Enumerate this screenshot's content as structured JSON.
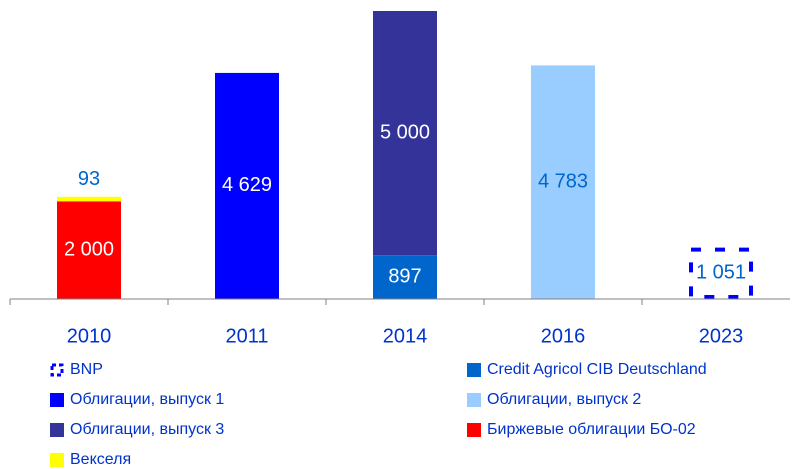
{
  "chart_data": {
    "type": "stacked_bar",
    "categories": [
      "2010",
      "2011",
      "2014",
      "2016",
      "2023"
    ],
    "series": [
      {
        "name": "BNP",
        "color": "#0000ff",
        "style": "dashed",
        "values": [
          null,
          null,
          null,
          null,
          1051
        ],
        "value_labels": [
          null,
          null,
          null,
          null,
          "1 051"
        ]
      },
      {
        "name": "Credit Agricol CIB Deutschland",
        "color": "#0066cc",
        "values": [
          null,
          null,
          897,
          null,
          null
        ],
        "value_labels": [
          null,
          null,
          "897",
          null,
          null
        ]
      },
      {
        "name": "Облигации, выпуск 1",
        "color": "#0000ff",
        "values": [
          null,
          4629,
          null,
          null,
          null
        ],
        "value_labels": [
          null,
          "4 629",
          null,
          null,
          null
        ]
      },
      {
        "name": "Облигации, выпуск 2",
        "color": "#99ccff",
        "values": [
          null,
          null,
          null,
          4783,
          null
        ],
        "value_labels": [
          null,
          null,
          null,
          "4 783",
          null
        ]
      },
      {
        "name": "Облигации, выпуск 3",
        "color": "#333399",
        "values": [
          null,
          null,
          5000,
          null,
          null
        ],
        "value_labels": [
          null,
          null,
          "5 000",
          null,
          null
        ]
      },
      {
        "name": "Биржевые облигации БО-02",
        "color": "#ff0000",
        "values": [
          2000,
          null,
          null,
          null,
          null
        ],
        "value_labels": [
          "2 000",
          null,
          null,
          null,
          null
        ]
      },
      {
        "name": "Векселя",
        "color": "#ffff00",
        "values": [
          93,
          null,
          null,
          null,
          null
        ],
        "value_labels": [
          "93",
          null,
          null,
          null,
          null
        ]
      }
    ],
    "legend": "bottom"
  }
}
